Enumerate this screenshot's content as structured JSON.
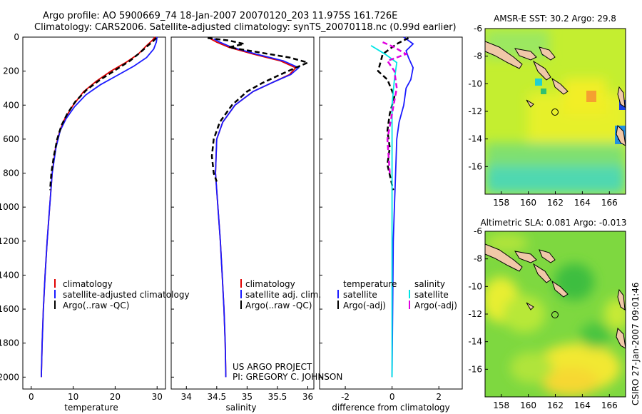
{
  "title": {
    "line1": "Argo profile: AO 5900669_74 18-Jan-2007 20070120_203 11.975S 161.726E",
    "line2": "Climatology: CARS2006. Satellite-adjusted climatology: synTS_20070118.nc (0.99d earlier)"
  },
  "footer": {
    "project": "US ARGO PROJECT",
    "pi": "PI: GREGORY C. JOHNSON",
    "stamp": "CSIRO 27-Jan-2007 09:01:46"
  },
  "colors": {
    "climatology": "#e00000",
    "satellite": "#1a1aff",
    "argo": "#000000",
    "sat_salinity": "#00e5e5",
    "argo_salinity": "#e000e0",
    "land": "#f0c8a8"
  },
  "chart_data": [
    {
      "type": "line",
      "name": "temperature-panel",
      "xlabel": "temperature",
      "xlim": [
        -2,
        32
      ],
      "ylim": [
        2070,
        0
      ],
      "xticks": [
        0,
        10,
        20,
        30
      ],
      "yticks": [
        0,
        200,
        400,
        600,
        800,
        1000,
        1200,
        1400,
        1600,
        1800,
        2000
      ],
      "legend": [
        "climatology",
        "satellite-adjusted climatology",
        "Argo(..raw -QC)"
      ],
      "series": [
        {
          "name": "climatology",
          "style": "solid",
          "color": "#e00000",
          "points": [
            [
              29.5,
              0
            ],
            [
              28.8,
              20
            ],
            [
              27.5,
              50
            ],
            [
              25.5,
              100
            ],
            [
              22.5,
              150
            ],
            [
              19.0,
              200
            ],
            [
              15.5,
              260
            ],
            [
              12.5,
              320
            ],
            [
              10.0,
              400
            ],
            [
              8.0,
              480
            ],
            [
              6.8,
              550
            ],
            [
              5.8,
              650
            ],
            [
              5.0,
              800
            ],
            [
              4.4,
              1000
            ],
            [
              3.8,
              1200
            ],
            [
              3.3,
              1400
            ],
            [
              2.9,
              1600
            ],
            [
              2.6,
              1800
            ],
            [
              2.4,
              2000
            ]
          ]
        },
        {
          "name": "satellite-adjusted climatology",
          "style": "solid",
          "color": "#1a1aff",
          "points": [
            [
              30.0,
              0
            ],
            [
              29.8,
              30
            ],
            [
              29.2,
              70
            ],
            [
              27.5,
              120
            ],
            [
              24.5,
              170
            ],
            [
              20.5,
              225
            ],
            [
              16.5,
              280
            ],
            [
              13.0,
              340
            ],
            [
              10.3,
              410
            ],
            [
              8.3,
              480
            ],
            [
              6.9,
              550
            ],
            [
              5.9,
              650
            ],
            [
              5.0,
              800
            ],
            [
              4.4,
              1000
            ],
            [
              3.8,
              1200
            ],
            [
              3.3,
              1400
            ],
            [
              2.9,
              1600
            ],
            [
              2.6,
              1800
            ],
            [
              2.4,
              2000
            ]
          ]
        },
        {
          "name": "Argo(..raw -QC)",
          "style": "dashed",
          "color": "#000000",
          "points": [
            [
              29.8,
              5
            ],
            [
              29.0,
              25
            ],
            [
              27.8,
              50
            ],
            [
              26.0,
              90
            ],
            [
              23.5,
              140
            ],
            [
              20.0,
              195
            ],
            [
              16.5,
              250
            ],
            [
              13.2,
              310
            ],
            [
              10.5,
              380
            ],
            [
              8.6,
              450
            ],
            [
              7.2,
              520
            ],
            [
              6.2,
              600
            ],
            [
              5.4,
              700
            ],
            [
              4.8,
              800
            ],
            [
              4.5,
              900
            ]
          ]
        }
      ]
    },
    {
      "type": "line",
      "name": "salinity-panel",
      "xlabel": "salinity",
      "xlim": [
        33.75,
        36.1
      ],
      "ylim": [
        2070,
        0
      ],
      "xticks": [
        34,
        34.5,
        35,
        35.5,
        36
      ],
      "legend": [
        "climatology",
        "satellite adj. clim.",
        "Argo(..raw -QC)"
      ],
      "series": [
        {
          "name": "climatology",
          "style": "solid",
          "color": "#e00000",
          "points": [
            [
              34.4,
              10
            ],
            [
              34.5,
              30
            ],
            [
              34.7,
              60
            ],
            [
              35.1,
              100
            ],
            [
              35.55,
              140
            ],
            [
              35.8,
              180
            ],
            [
              35.7,
              220
            ],
            [
              35.4,
              270
            ],
            [
              35.1,
              320
            ],
            [
              34.8,
              400
            ],
            [
              34.6,
              500
            ],
            [
              34.5,
              600
            ],
            [
              34.48,
              800
            ],
            [
              34.52,
              1000
            ],
            [
              34.56,
              1200
            ],
            [
              34.59,
              1400
            ],
            [
              34.62,
              1600
            ],
            [
              34.64,
              1800
            ],
            [
              34.65,
              2000
            ]
          ]
        },
        {
          "name": "satellite adj. clim.",
          "style": "solid",
          "color": "#1a1aff",
          "points": [
            [
              34.45,
              10
            ],
            [
              34.55,
              30
            ],
            [
              34.75,
              60
            ],
            [
              35.15,
              100
            ],
            [
              35.6,
              140
            ],
            [
              35.85,
              180
            ],
            [
              35.72,
              220
            ],
            [
              35.4,
              270
            ],
            [
              35.1,
              320
            ],
            [
              34.8,
              400
            ],
            [
              34.6,
              500
            ],
            [
              34.5,
              600
            ],
            [
              34.48,
              800
            ],
            [
              34.52,
              1000
            ],
            [
              34.56,
              1200
            ],
            [
              34.59,
              1400
            ],
            [
              34.62,
              1600
            ],
            [
              34.64,
              1800
            ],
            [
              34.65,
              2000
            ]
          ]
        },
        {
          "name": "Argo(..raw -QC)",
          "style": "dashed",
          "color": "#000000",
          "points": [
            [
              34.35,
              5
            ],
            [
              34.7,
              20
            ],
            [
              34.95,
              40
            ],
            [
              34.7,
              60
            ],
            [
              35.2,
              90
            ],
            [
              35.7,
              120
            ],
            [
              36.0,
              150
            ],
            [
              35.8,
              180
            ],
            [
              35.55,
              220
            ],
            [
              35.25,
              270
            ],
            [
              35.0,
              320
            ],
            [
              34.75,
              400
            ],
            [
              34.55,
              500
            ],
            [
              34.45,
              600
            ],
            [
              34.42,
              700
            ],
            [
              34.45,
              800
            ],
            [
              34.5,
              850
            ]
          ]
        }
      ]
    },
    {
      "type": "line",
      "name": "difference-panel",
      "xlabel": "difference from climatology",
      "xlim": [
        -3.1,
        3.0
      ],
      "ylim": [
        2070,
        0
      ],
      "xticks": [
        -2,
        0,
        2
      ],
      "legend": [
        "temperature",
        "satellite",
        "Argo(-adj)",
        "salinity",
        "satellite",
        "Argo(-adj)"
      ],
      "series": [
        {
          "name": "temperature satellite",
          "style": "solid",
          "color": "#1a1aff",
          "points": [
            [
              0.5,
              0
            ],
            [
              0.9,
              40
            ],
            [
              0.6,
              80
            ],
            [
              0.7,
              120
            ],
            [
              0.9,
              180
            ],
            [
              0.8,
              250
            ],
            [
              0.6,
              300
            ],
            [
              0.5,
              400
            ],
            [
              0.3,
              500
            ],
            [
              0.2,
              600
            ],
            [
              0.15,
              800
            ],
            [
              0.1,
              1000
            ],
            [
              0.05,
              1200
            ],
            [
              0,
              2000
            ]
          ]
        },
        {
          "name": "temperature Argo(-adj)",
          "style": "dashed",
          "color": "#000000",
          "points": [
            [
              0.7,
              5
            ],
            [
              0.2,
              40
            ],
            [
              -0.4,
              100
            ],
            [
              -0.6,
              200
            ],
            [
              -0.2,
              250
            ],
            [
              0.1,
              350
            ],
            [
              -0.1,
              450
            ],
            [
              -0.2,
              550
            ],
            [
              -0.1,
              650
            ],
            [
              -0.2,
              750
            ],
            [
              0.05,
              900
            ]
          ]
        },
        {
          "name": "salinity satellite",
          "style": "solid",
          "color": "#00e5e5",
          "points": [
            [
              -0.9,
              50
            ],
            [
              -0.3,
              100
            ],
            [
              0.2,
              150
            ],
            [
              0.1,
              250
            ],
            [
              0,
              400
            ],
            [
              0,
              800
            ],
            [
              0,
              2000
            ]
          ]
        },
        {
          "name": "salinity Argo(-adj)",
          "style": "dashed",
          "color": "#e000e0",
          "points": [
            [
              -0.4,
              30
            ],
            [
              0.1,
              60
            ],
            [
              0.6,
              100
            ],
            [
              -0.2,
              140
            ],
            [
              0.1,
              200
            ],
            [
              0.2,
              300
            ],
            [
              0,
              450
            ],
            [
              -0.2,
              600
            ],
            [
              -0.1,
              800
            ]
          ]
        }
      ]
    },
    {
      "type": "heatmap",
      "name": "sst-map",
      "title": "AMSR-E SST: 30.2  Argo: 29.8",
      "xlim": [
        156.8,
        167.2
      ],
      "ylim": [
        -18,
        -6
      ],
      "xticks": [
        158,
        160,
        162,
        164,
        166
      ],
      "yticks": [
        -6,
        -8,
        -10,
        -12,
        -14,
        -16
      ],
      "argo_position": [
        161.726,
        -11.975
      ]
    },
    {
      "type": "heatmap",
      "name": "sla-map",
      "title": "Altimetric SLA: 0.081  Argo: -0.013",
      "xlim": [
        156.8,
        167.2
      ],
      "ylim": [
        -18,
        -6
      ],
      "xticks": [
        158,
        160,
        162,
        164,
        166
      ],
      "yticks": [
        -6,
        -8,
        -10,
        -12,
        -14,
        -16
      ],
      "argo_position": [
        161.726,
        -11.975
      ]
    }
  ]
}
